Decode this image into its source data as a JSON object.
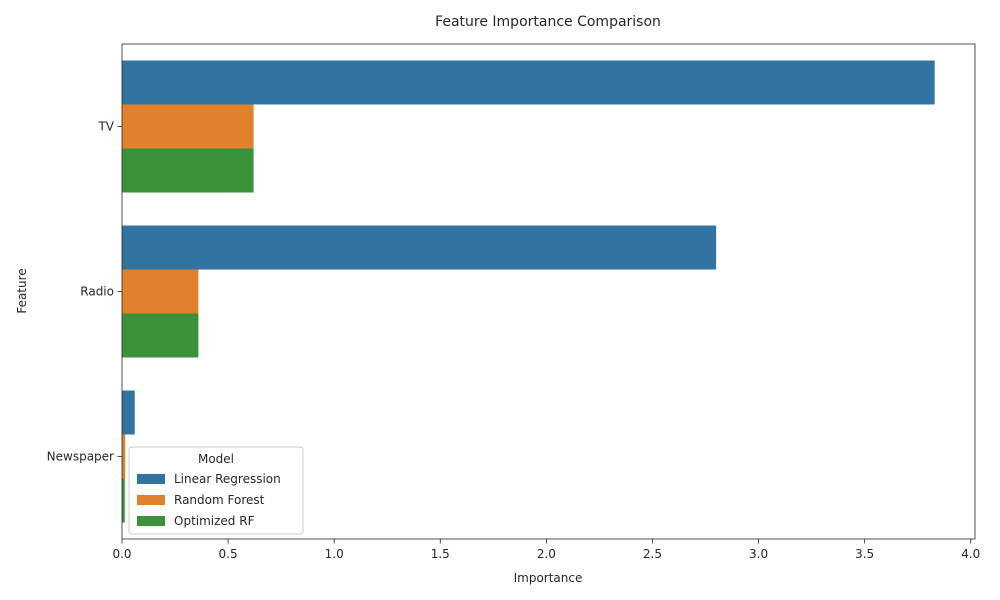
{
  "chart_data": {
    "type": "bar",
    "orientation": "horizontal",
    "title": "Feature Importance Comparison",
    "xlabel": "Importance",
    "ylabel": "Feature",
    "categories": [
      "TV",
      "Radio",
      "Newspaper"
    ],
    "series": [
      {
        "name": "Linear Regression",
        "color": "#3274a1",
        "values": [
          3.83,
          2.8,
          0.06
        ]
      },
      {
        "name": "Random Forest",
        "color": "#e1812c",
        "values": [
          0.62,
          0.36,
          0.015
        ]
      },
      {
        "name": "Optimized RF",
        "color": "#3a923a",
        "values": [
          0.62,
          0.36,
          0.013
        ]
      }
    ],
    "xlim": [
      0,
      4.02
    ],
    "xticks": [
      "0.0",
      "0.5",
      "1.0",
      "1.5",
      "2.0",
      "2.5",
      "3.0",
      "3.5",
      "4.0"
    ],
    "grid": false,
    "legend": {
      "title": "Model",
      "placement": "lower-left"
    }
  }
}
